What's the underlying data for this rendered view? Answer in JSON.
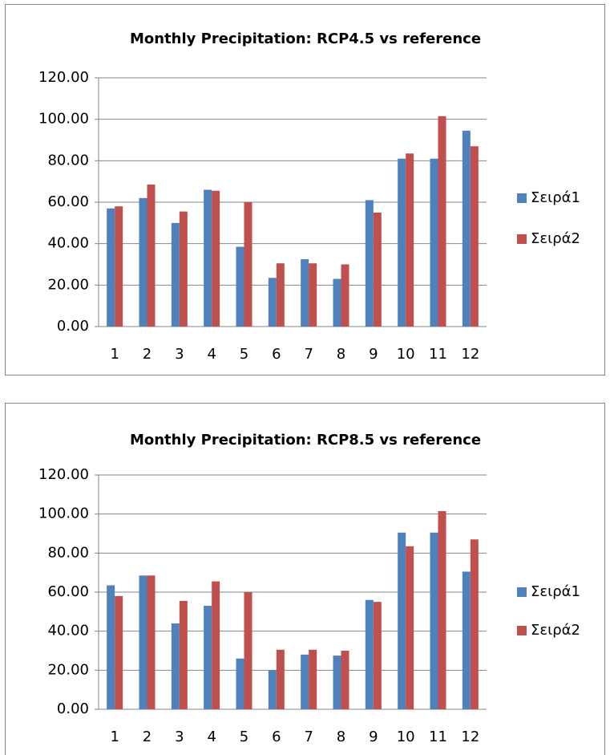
{
  "chart_data": [
    {
      "type": "bar",
      "title": "Monthly Precipitation: RCP4.5 vs reference",
      "categories": [
        "1",
        "2",
        "3",
        "4",
        "5",
        "6",
        "7",
        "8",
        "9",
        "10",
        "11",
        "12"
      ],
      "series": [
        {
          "name": "Σειρά1",
          "color": "#4f81bd",
          "values": [
            57,
            62,
            50,
            66,
            38.5,
            23.5,
            32.5,
            23,
            61,
            81,
            81,
            94.5
          ]
        },
        {
          "name": "Σειρά2",
          "color": "#c0504d",
          "values": [
            58,
            68.5,
            55.5,
            65.5,
            60,
            30.5,
            30.5,
            30,
            55,
            83.5,
            101.5,
            87
          ]
        }
      ],
      "ylim": [
        0,
        120
      ],
      "yticks": [
        {
          "value": 0,
          "label": "0.00"
        },
        {
          "value": 20,
          "label": "20.00"
        },
        {
          "value": 40,
          "label": "40.00"
        },
        {
          "value": 60,
          "label": "60.00"
        },
        {
          "value": 80,
          "label": "80.00"
        },
        {
          "value": 100,
          "label": "100.00"
        },
        {
          "value": 120,
          "label": "120.00"
        }
      ],
      "grid": true,
      "legend": "right"
    },
    {
      "type": "bar",
      "title": "Monthly Precipitation: RCP8.5 vs reference",
      "categories": [
        "1",
        "2",
        "3",
        "4",
        "5",
        "6",
        "7",
        "8",
        "9",
        "10",
        "11",
        "12"
      ],
      "series": [
        {
          "name": "Σειρά1",
          "color": "#4f81bd",
          "values": [
            63.5,
            68.5,
            44,
            53,
            26,
            20,
            28,
            27.5,
            56,
            90.5,
            90.5,
            70.5
          ]
        },
        {
          "name": "Σειρά2",
          "color": "#c0504d",
          "values": [
            58,
            68.5,
            55.5,
            65.5,
            60,
            30.5,
            30.5,
            30,
            55,
            83.5,
            101.5,
            87
          ]
        }
      ],
      "ylim": [
        0,
        120
      ],
      "yticks": [
        {
          "value": 0,
          "label": "0.00"
        },
        {
          "value": 20,
          "label": "20.00"
        },
        {
          "value": 40,
          "label": "40.00"
        },
        {
          "value": 60,
          "label": "60.00"
        },
        {
          "value": 80,
          "label": "80.00"
        },
        {
          "value": 100,
          "label": "100.00"
        },
        {
          "value": 120,
          "label": "120.00"
        }
      ],
      "grid": true,
      "legend": "right"
    }
  ]
}
